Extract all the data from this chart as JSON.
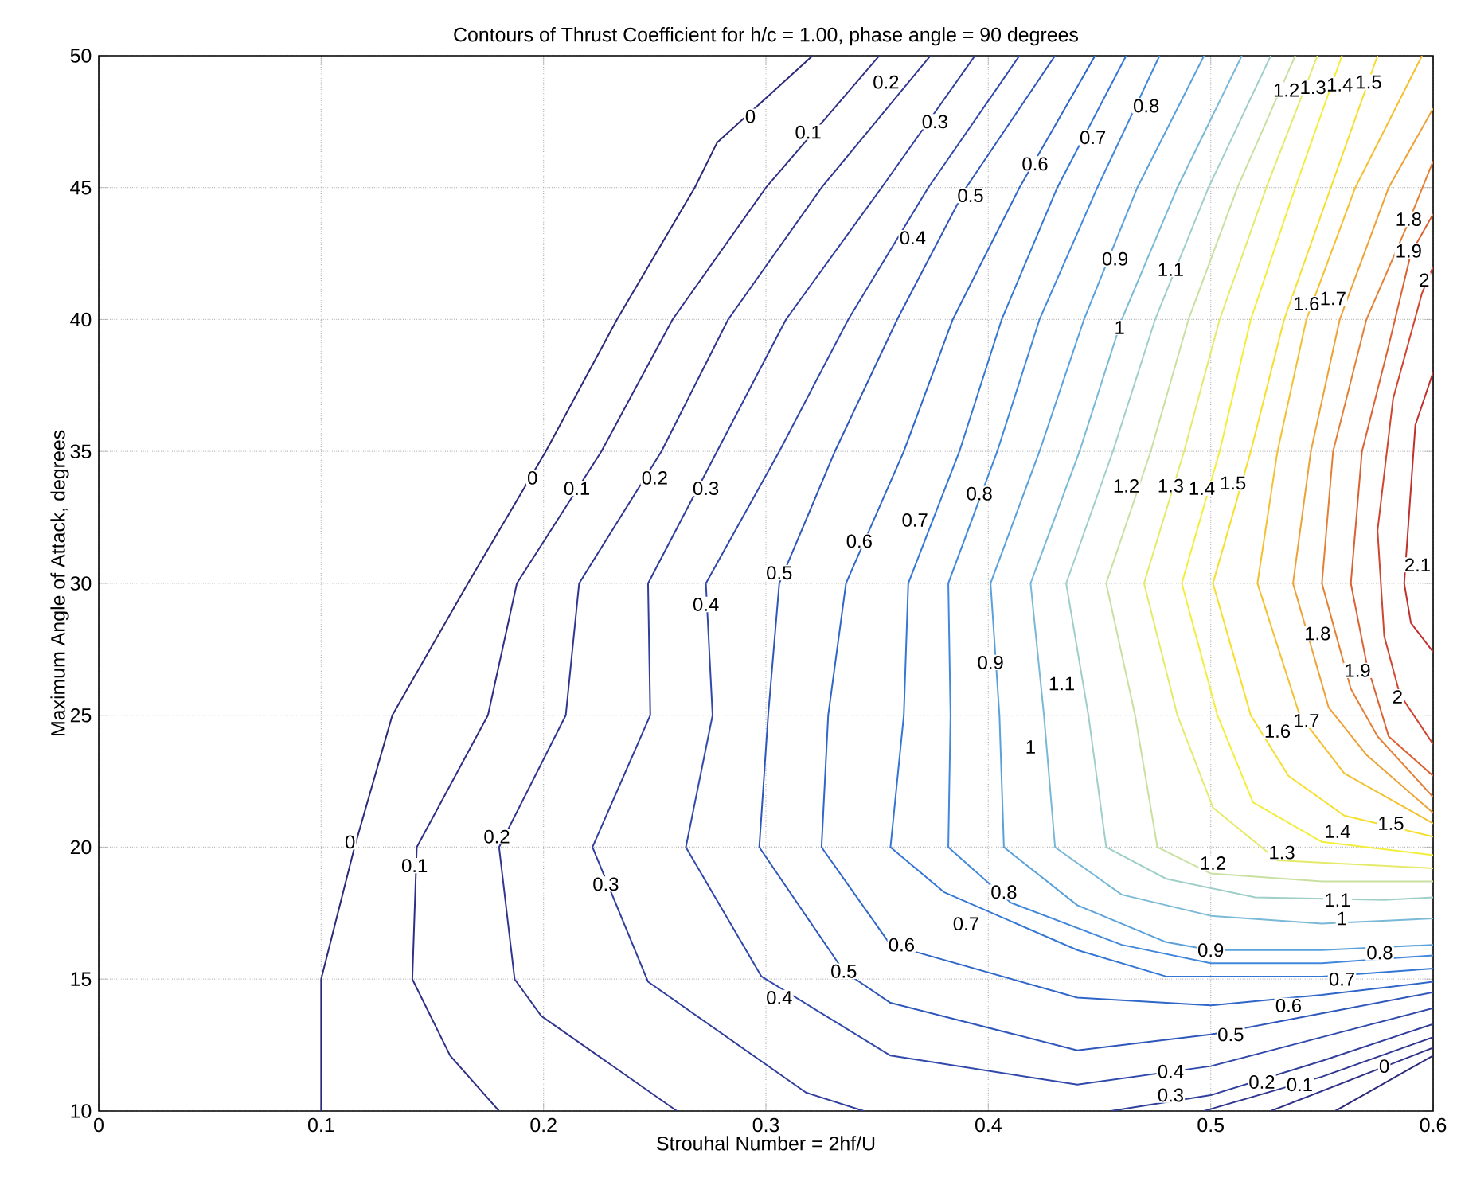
{
  "chart_data": {
    "type": "line",
    "title": "Contours of Thrust Coefficient for h/c = 1.00, phase angle = 90 degrees",
    "xlabel": "Strouhal Number = 2hf/U",
    "ylabel": "Maximum Angle of Attack, degrees",
    "xlim": [
      0,
      0.6
    ],
    "ylim": [
      10,
      50
    ],
    "xticks": [
      0,
      0.1,
      0.2,
      0.3,
      0.4,
      0.5,
      0.6
    ],
    "yticks": [
      10,
      15,
      20,
      25,
      30,
      35,
      40,
      45,
      50
    ],
    "grid": true,
    "series": [
      {
        "color": "#2c2a7a",
        "x": [
          0.1,
          0.1,
          0.115,
          0.132,
          0.166,
          0.201,
          0.233,
          0.268,
          0.278,
          0.321,
          null,
          0.556,
          0.6
        ],
        "values": [
          10,
          15,
          20,
          25,
          30,
          35,
          40,
          45,
          46.7,
          50,
          null,
          10,
          12.1
        ]
      },
      {
        "color": "#2e2f86",
        "x": [
          0.18,
          0.158,
          0.141,
          0.143,
          0.175,
          0.188,
          0.226,
          0.258,
          0.3,
          0.351,
          null,
          0.527,
          0.6
        ],
        "values": [
          10,
          12.1,
          15,
          20,
          25,
          30,
          35,
          40,
          45,
          50,
          null,
          10,
          12.4
        ]
      },
      {
        "color": "#303690",
        "x": [
          0.26,
          0.199,
          0.187,
          0.18,
          0.21,
          0.216,
          0.253,
          0.283,
          0.325,
          0.374,
          null,
          0.497,
          0.55,
          0.6
        ],
        "values": [
          10,
          13.6,
          15,
          20,
          25,
          30,
          35,
          40,
          45,
          50,
          null,
          10,
          11.3,
          12.8
        ]
      },
      {
        "color": "#2f3d9c",
        "x": [
          0.344,
          0.318,
          0.247,
          0.222,
          0.248,
          0.247,
          0.278,
          0.309,
          0.352,
          0.394,
          null,
          0.455,
          0.5,
          0.55,
          0.6
        ],
        "values": [
          10,
          10.7,
          14.9,
          20,
          25,
          30,
          35,
          40,
          45,
          50,
          null,
          10,
          10.6,
          11.9,
          13.3
        ]
      },
      {
        "color": "#2f48aa",
        "x": [
          0.414,
          0.373,
          0.337,
          0.306,
          0.273,
          0.276,
          0.264,
          0.298,
          0.356,
          0.44,
          0.5,
          0.55,
          0.6
        ],
        "values": [
          50,
          45,
          40,
          35,
          30,
          25,
          20,
          15.1,
          12.1,
          11.0,
          11.7,
          12.8,
          13.9
        ]
      },
      {
        "color": "#2f57bb",
        "x": [
          0.43,
          0.39,
          0.359,
          0.331,
          0.306,
          0.301,
          0.297,
          0.335,
          0.356,
          0.44,
          0.5,
          0.55,
          0.6
        ],
        "values": [
          50,
          45,
          40,
          35,
          30,
          25,
          20,
          15.3,
          14.1,
          12.3,
          12.9,
          13.7,
          14.5
        ]
      },
      {
        "color": "#2f66c8",
        "x": [
          0.448,
          0.414,
          0.384,
          0.362,
          0.336,
          0.328,
          0.325,
          0.356,
          0.44,
          0.5,
          0.55,
          0.6
        ],
        "values": [
          50,
          45,
          40,
          35,
          30,
          25,
          20,
          16.3,
          14.3,
          14.0,
          14.4,
          14.9
        ]
      },
      {
        "color": "#3476d4",
        "x": [
          0.462,
          0.431,
          0.406,
          0.387,
          0.364,
          0.362,
          0.356,
          0.38,
          0.44,
          0.48,
          0.55,
          0.6
        ],
        "values": [
          50,
          45,
          40,
          35,
          30,
          25,
          20,
          18.3,
          16.1,
          15.1,
          15.1,
          15.4
        ]
      },
      {
        "color": "#4188dc",
        "x": [
          0.477,
          0.449,
          0.423,
          0.404,
          0.382,
          0.383,
          0.382,
          0.41,
          0.46,
          0.5,
          0.55,
          0.6
        ],
        "values": [
          50,
          45,
          40,
          35,
          30,
          25,
          20,
          17.9,
          16.3,
          15.6,
          15.6,
          15.9
        ]
      },
      {
        "color": "#5aa1db",
        "x": [
          0.497,
          0.467,
          0.443,
          0.423,
          0.401,
          0.405,
          0.407,
          0.44,
          0.48,
          0.5,
          0.55,
          0.6
        ],
        "values": [
          50,
          45,
          40,
          35,
          30,
          25,
          20,
          17.8,
          16.4,
          16.1,
          16.1,
          16.3
        ]
      },
      {
        "color": "#79b8d6",
        "x": [
          0.514,
          0.485,
          0.46,
          0.441,
          0.419,
          0.425,
          0.43,
          0.46,
          0.5,
          0.55,
          0.6
        ],
        "values": [
          50,
          45,
          40,
          35,
          30,
          25,
          20,
          18.2,
          17.4,
          17.1,
          17.3
        ]
      },
      {
        "color": "#9fcfc8",
        "x": [
          0.527,
          0.499,
          0.475,
          0.456,
          0.435,
          0.445,
          0.453,
          0.48,
          0.52,
          0.578,
          0.6
        ],
        "values": [
          50,
          45,
          40,
          35,
          30,
          25,
          20,
          18.8,
          18.1,
          18.0,
          18.1
        ]
      },
      {
        "color": "#c8e0a0",
        "x": [
          0.538,
          0.512,
          0.49,
          0.473,
          0.453,
          0.466,
          0.476,
          0.5,
          0.55,
          0.6
        ],
        "values": [
          50,
          45,
          40,
          35,
          30,
          25,
          20,
          19.0,
          18.7,
          18.7
        ]
      },
      {
        "color": "#e6ea6a",
        "x": [
          0.548,
          0.525,
          0.504,
          0.488,
          0.47,
          0.485,
          0.501,
          0.53,
          0.6
        ],
        "values": [
          50,
          45,
          40,
          35,
          30,
          25,
          21.5,
          19.5,
          19.2
        ]
      },
      {
        "color": "#f3ee3c",
        "x": [
          0.559,
          0.538,
          0.518,
          0.504,
          0.487,
          0.503,
          0.519,
          0.55,
          0.6
        ],
        "values": [
          50,
          45,
          40,
          35,
          30,
          25,
          21.7,
          20.2,
          19.7
        ]
      },
      {
        "color": "#f6df2e",
        "x": [
          0.575,
          0.554,
          0.533,
          0.518,
          0.501,
          0.518,
          0.535,
          0.56,
          0.6
        ],
        "values": [
          50,
          45,
          40,
          35,
          30,
          25,
          22.7,
          21.2,
          20.4
        ]
      },
      {
        "color": "#f2c030",
        "x": [
          0.6,
          0.56,
          0.54,
          0.521,
          0.53,
          0.543,
          0.565,
          0.595
        ],
        "values": [
          20.9,
          22.8,
          25,
          30,
          35,
          40,
          45,
          50
        ]
      },
      {
        "color": "#eea135",
        "x": [
          0.6,
          0.57,
          0.553,
          0.537,
          0.545,
          0.558,
          0.58,
          0.6
        ],
        "values": [
          21.3,
          23.5,
          25.3,
          30,
          35,
          40,
          45,
          48
        ]
      },
      {
        "color": "#e48035",
        "x": [
          0.6,
          0.575,
          0.563,
          0.55,
          0.555,
          0.57,
          0.588,
          0.6
        ],
        "values": [
          21.9,
          24.2,
          26,
          30,
          35,
          40,
          43.5,
          46
        ]
      },
      {
        "color": "#db6133",
        "x": [
          0.6,
          0.58,
          0.57,
          0.563,
          0.568,
          0.58,
          0.59,
          0.6
        ],
        "values": [
          22.7,
          24.2,
          27,
          30,
          35,
          39,
          42.5,
          44
        ]
      },
      {
        "color": "#cf4530",
        "x": [
          0.6,
          0.585,
          0.578,
          0.575,
          0.582,
          0.595,
          0.6
        ],
        "values": [
          23.9,
          25.8,
          28,
          32,
          37,
          41,
          42
        ]
      },
      {
        "color": "#c0302c",
        "x": [
          0.6,
          0.59,
          0.587,
          0.592,
          0.6
        ],
        "values": [
          27.4,
          28.5,
          30,
          36,
          38
        ]
      }
    ],
    "annotations": [
      {
        "text": "0",
        "x": 0.293,
        "y": 47.7
      },
      {
        "text": "0.1",
        "x": 0.319,
        "y": 47.1
      },
      {
        "text": "0.2",
        "x": 0.354,
        "y": 49
      },
      {
        "text": "0.3",
        "x": 0.376,
        "y": 47.5
      },
      {
        "text": "0.4",
        "x": 0.366,
        "y": 43.1
      },
      {
        "text": "0.5",
        "x": 0.392,
        "y": 44.7
      },
      {
        "text": "0.6",
        "x": 0.421,
        "y": 45.9
      },
      {
        "text": "0.7",
        "x": 0.447,
        "y": 46.9
      },
      {
        "text": "0.8",
        "x": 0.471,
        "y": 48.1
      },
      {
        "text": "1.2",
        "x": 0.534,
        "y": 48.7
      },
      {
        "text": "1.3",
        "x": 0.546,
        "y": 48.8
      },
      {
        "text": "1.4",
        "x": 0.558,
        "y": 48.9
      },
      {
        "text": "1.5",
        "x": 0.571,
        "y": 49.0
      },
      {
        "text": "0.9",
        "x": 0.457,
        "y": 42.3
      },
      {
        "text": "1.1",
        "x": 0.482,
        "y": 41.9
      },
      {
        "text": "1",
        "x": 0.459,
        "y": 39.7
      },
      {
        "text": "1.6",
        "x": 0.543,
        "y": 40.6
      },
      {
        "text": "1.7",
        "x": 0.555,
        "y": 40.8
      },
      {
        "text": "1.8",
        "x": 0.589,
        "y": 43.8
      },
      {
        "text": "1.9",
        "x": 0.589,
        "y": 42.6
      },
      {
        "text": "2",
        "x": 0.596,
        "y": 41.5
      },
      {
        "text": "0",
        "x": 0.195,
        "y": 34.0
      },
      {
        "text": "0.1",
        "x": 0.215,
        "y": 33.6
      },
      {
        "text": "0.2",
        "x": 0.25,
        "y": 34.0
      },
      {
        "text": "0.3",
        "x": 0.273,
        "y": 33.6
      },
      {
        "text": "0.4",
        "x": 0.273,
        "y": 29.2
      },
      {
        "text": "0.5",
        "x": 0.306,
        "y": 30.4
      },
      {
        "text": "0.6",
        "x": 0.342,
        "y": 31.6
      },
      {
        "text": "0.7",
        "x": 0.367,
        "y": 32.4
      },
      {
        "text": "0.8",
        "x": 0.396,
        "y": 33.4
      },
      {
        "text": "1.2",
        "x": 0.462,
        "y": 33.7
      },
      {
        "text": "1.3",
        "x": 0.482,
        "y": 33.7
      },
      {
        "text": "1.4",
        "x": 0.496,
        "y": 33.6
      },
      {
        "text": "1.5",
        "x": 0.51,
        "y": 33.8
      },
      {
        "text": "2.1",
        "x": 0.593,
        "y": 30.7
      },
      {
        "text": "0.9",
        "x": 0.401,
        "y": 27.0
      },
      {
        "text": "1.1",
        "x": 0.433,
        "y": 26.2
      },
      {
        "text": "1",
        "x": 0.419,
        "y": 23.8
      },
      {
        "text": "1.8",
        "x": 0.548,
        "y": 28.1
      },
      {
        "text": "1.9",
        "x": 0.566,
        "y": 26.7
      },
      {
        "text": "2",
        "x": 0.584,
        "y": 25.7
      },
      {
        "text": "1.6",
        "x": 0.53,
        "y": 24.4
      },
      {
        "text": "1.7",
        "x": 0.543,
        "y": 24.8
      },
      {
        "text": "1.2",
        "x": 0.501,
        "y": 19.4
      },
      {
        "text": "1.3",
        "x": 0.532,
        "y": 19.8
      },
      {
        "text": "1.4",
        "x": 0.557,
        "y": 20.6
      },
      {
        "text": "1.5",
        "x": 0.581,
        "y": 20.9
      },
      {
        "text": "0",
        "x": 0.113,
        "y": 20.2
      },
      {
        "text": "0.1",
        "x": 0.142,
        "y": 19.3
      },
      {
        "text": "0.2",
        "x": 0.179,
        "y": 20.4
      },
      {
        "text": "0.3",
        "x": 0.228,
        "y": 18.6
      },
      {
        "text": "0.4",
        "x": 0.306,
        "y": 14.3
      },
      {
        "text": "0.5",
        "x": 0.335,
        "y": 15.3
      },
      {
        "text": "0.6",
        "x": 0.361,
        "y": 16.3
      },
      {
        "text": "0.7",
        "x": 0.39,
        "y": 17.1
      },
      {
        "text": "0.8",
        "x": 0.407,
        "y": 18.3
      },
      {
        "text": "0.9",
        "x": 0.5,
        "y": 16.1
      },
      {
        "text": "1.1",
        "x": 0.557,
        "y": 18.0
      },
      {
        "text": "1",
        "x": 0.559,
        "y": 17.3
      },
      {
        "text": "0.8",
        "x": 0.576,
        "y": 16.0
      },
      {
        "text": "0.7",
        "x": 0.559,
        "y": 15.0
      },
      {
        "text": "0.6",
        "x": 0.535,
        "y": 14.0
      },
      {
        "text": "0.5",
        "x": 0.509,
        "y": 12.9
      },
      {
        "text": "0.4",
        "x": 0.482,
        "y": 11.5
      },
      {
        "text": "0.3",
        "x": 0.482,
        "y": 10.6
      },
      {
        "text": "0.2",
        "x": 0.523,
        "y": 11.1
      },
      {
        "text": "0.1",
        "x": 0.54,
        "y": 11.0
      },
      {
        "text": "0",
        "x": 0.578,
        "y": 11.7
      }
    ]
  }
}
